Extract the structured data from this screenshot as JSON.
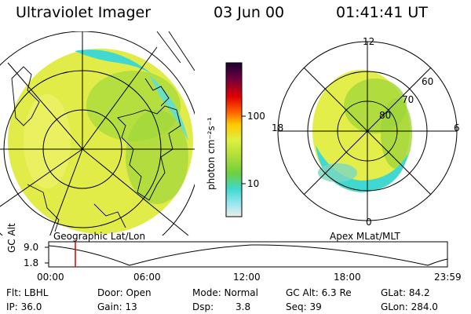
{
  "header": {
    "title": "Ultraviolet Imager",
    "date": "03 Jun 00",
    "time": "01:41:41 UT"
  },
  "colorbar": {
    "unit_label": "photon cm⁻²s⁻¹",
    "ticks": [
      "100",
      "10"
    ]
  },
  "left_panel": {
    "caption": "Geographic Lat/Lon"
  },
  "right_panel": {
    "caption": "Apex MLat/MLT",
    "mlt_labels": {
      "top": "12",
      "bottom": "0",
      "left": "18",
      "right": "6"
    },
    "lat_labels": [
      "60",
      "70",
      "80"
    ]
  },
  "altitude_plot": {
    "ylabel": "GC Alt",
    "yticks": [
      "9.0",
      "1.8"
    ],
    "xticks": [
      "00:00",
      "06:00",
      "12:00",
      "18:00",
      "23:59"
    ]
  },
  "info": {
    "flt": "Flt: LBHL",
    "ip": "IP: 36.0",
    "door": "Door: Open",
    "gain": "Gain: 13",
    "mode": "Mode: Normal",
    "dsp_label": "Dsp:",
    "dsp_value": "3.8",
    "gcalt": "GC Alt: 6.3 Re",
    "seq": "Seq: 39",
    "glat": "GLat:  84.2",
    "glon": "GLon: 284.0"
  },
  "colors": {
    "auroral_yellow": "#e3ee4a",
    "auroral_green": "#a7d93b",
    "auroral_cyan": "#40d8d0",
    "marker_red": "#dd0000"
  }
}
